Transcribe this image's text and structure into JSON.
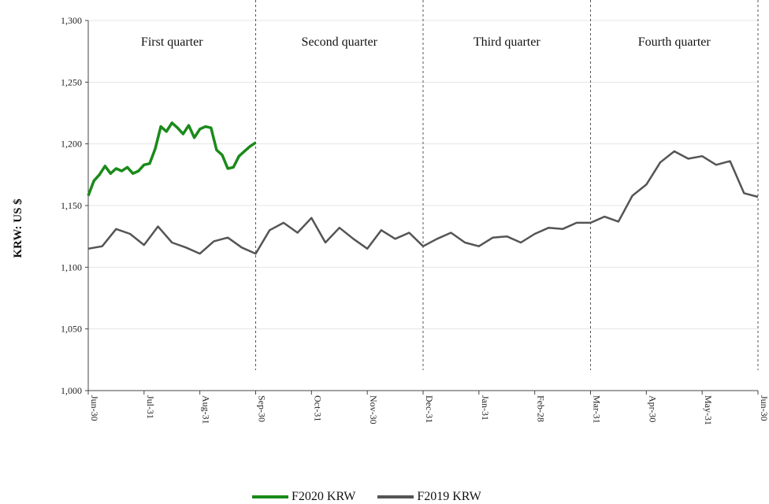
{
  "chart_data": {
    "type": "line",
    "ylabel": "KRW: US $",
    "ylim": [
      1000,
      1300
    ],
    "yticks": [
      "1,000",
      "1,050",
      "1,100",
      "1,150",
      "1,200",
      "1,250",
      "1,300"
    ],
    "xticks": [
      "Jun-30",
      "Jul-31",
      "Aug-31",
      "Sep-30",
      "Oct-31",
      "Nov-30",
      "Dec-31",
      "Jan-31",
      "Feb-28",
      "Mar-31",
      "Apr-30",
      "May-31",
      "Jun-30"
    ],
    "quarters": [
      "First quarter",
      "Second quarter",
      "Third quarter",
      "Fourth quarter"
    ],
    "grid": true,
    "legend_position": "bottom",
    "series": [
      {
        "name": "F2020 KRW",
        "color": "#1a8a1a",
        "x": [
          0,
          0.1,
          0.2,
          0.3,
          0.4,
          0.5,
          0.6,
          0.7,
          0.8,
          0.9,
          1.0,
          1.1,
          1.2,
          1.3,
          1.4,
          1.5,
          1.6,
          1.7,
          1.8,
          1.9,
          2.0,
          2.1,
          2.2,
          2.3,
          2.4,
          2.5,
          2.6,
          2.7,
          2.8,
          2.9,
          3.0
        ],
        "values": [
          1158,
          1170,
          1175,
          1182,
          1176,
          1180,
          1178,
          1181,
          1176,
          1178,
          1183,
          1184,
          1196,
          1214,
          1210,
          1217,
          1213,
          1208,
          1215,
          1205,
          1212,
          1214,
          1213,
          1195,
          1191,
          1180,
          1181,
          1190,
          1194,
          1198,
          1201
        ]
      },
      {
        "name": "F2019 KRW",
        "color": "#555555",
        "x": [
          0,
          0.25,
          0.5,
          0.75,
          1.0,
          1.25,
          1.5,
          1.75,
          2.0,
          2.25,
          2.5,
          2.75,
          3.0,
          3.25,
          3.5,
          3.75,
          4.0,
          4.25,
          4.5,
          4.75,
          5.0,
          5.25,
          5.5,
          5.75,
          6.0,
          6.25,
          6.5,
          6.75,
          7.0,
          7.25,
          7.5,
          7.75,
          8.0,
          8.25,
          8.5,
          8.75,
          9.0,
          9.25,
          9.5,
          9.75,
          10.0,
          10.25,
          10.5,
          10.75,
          11.0,
          11.25,
          11.5,
          11.75,
          12.0
        ],
        "values": [
          1115,
          1117,
          1131,
          1127,
          1118,
          1133,
          1120,
          1116,
          1111,
          1121,
          1124,
          1116,
          1111,
          1130,
          1136,
          1128,
          1140,
          1120,
          1132,
          1123,
          1115,
          1130,
          1123,
          1128,
          1117,
          1123,
          1128,
          1120,
          1117,
          1124,
          1125,
          1120,
          1127,
          1132,
          1131,
          1136,
          1136,
          1141,
          1137,
          1158,
          1167,
          1185,
          1194,
          1188,
          1190,
          1183,
          1186,
          1160,
          1157
        ]
      }
    ]
  },
  "legend": {
    "items": [
      {
        "label": "F2020 KRW",
        "color": "#1a8a1a"
      },
      {
        "label": "F2019 KRW",
        "color": "#555555"
      }
    ]
  }
}
